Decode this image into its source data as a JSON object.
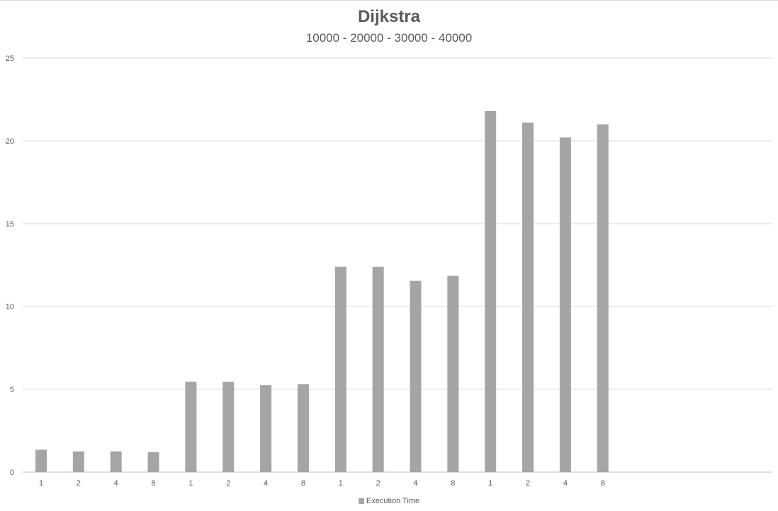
{
  "chart_data": {
    "type": "bar",
    "title": "Dijkstra",
    "subtitle": "10000 - 20000 - 30000 - 40000",
    "categories": [
      "1",
      "2",
      "4",
      "8",
      "1",
      "2",
      "4",
      "8",
      "1",
      "2",
      "4",
      "8",
      "1",
      "2",
      "4",
      "8"
    ],
    "series": [
      {
        "name": "Execution Time",
        "color": "#a5a5a5",
        "values": [
          1.35,
          1.25,
          1.25,
          1.2,
          5.45,
          5.45,
          5.25,
          5.3,
          12.4,
          12.4,
          11.55,
          11.85,
          21.8,
          21.1,
          20.2,
          21.0
        ]
      }
    ],
    "ylim": [
      0,
      25
    ],
    "yticks": [
      0,
      5,
      10,
      15,
      20,
      25
    ],
    "grid": true,
    "legend_position": "bottom"
  }
}
